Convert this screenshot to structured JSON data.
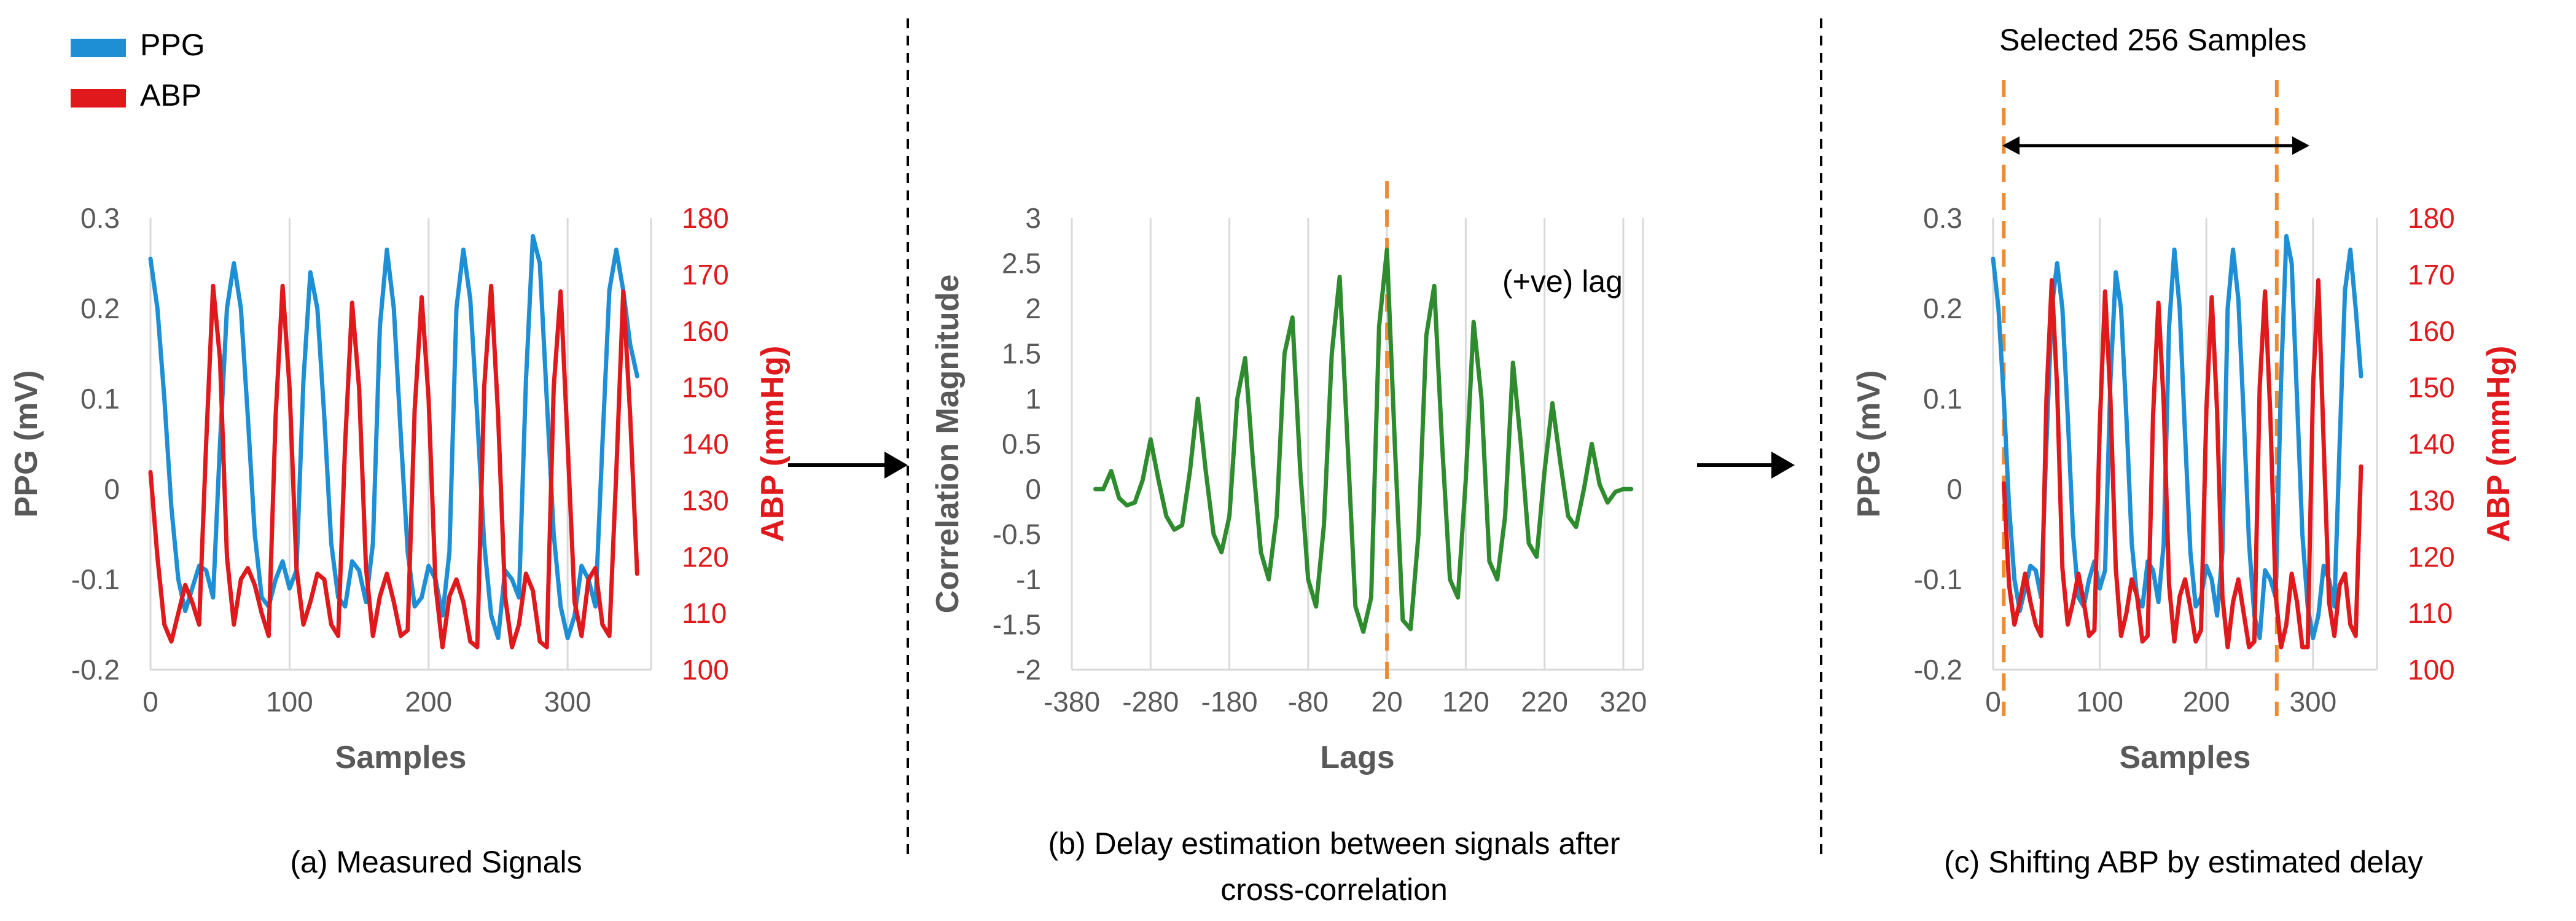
{
  "legend": {
    "items": [
      {
        "label": "PPG",
        "color": "#1E8FD5"
      },
      {
        "label": "ABP",
        "color": "#E0191C"
      }
    ]
  },
  "captions": {
    "a": "(a) Measured Signals",
    "b_line1": "(b) Delay estimation between signals after",
    "b_line2": "cross-correlation",
    "c": "(c) Shifting ABP by estimated delay"
  },
  "annotations": {
    "lag": "(+ve) lag",
    "selected": "Selected 256 Samples"
  },
  "colors": {
    "ppg": "#1E8FD5",
    "abp": "#E0191C",
    "corr": "#2E8B2E",
    "marker": "#F08A2E",
    "axis_text": "#595959",
    "grid": "#D9D9D9"
  },
  "chart_data": [
    {
      "id": "a",
      "type": "line",
      "xlabel": "Samples",
      "ylabel": "PPG (mV)",
      "y2label": "ABP (mmHg)",
      "xlim": [
        0,
        360
      ],
      "xticks": [
        0,
        100,
        200,
        300
      ],
      "ylim": [
        -0.2,
        0.3
      ],
      "yticks": [
        -0.2,
        -0.1,
        0,
        0.1,
        0.2,
        0.3
      ],
      "y2lim": [
        100,
        180
      ],
      "y2ticks": [
        100,
        110,
        120,
        130,
        140,
        150,
        160,
        170,
        180
      ],
      "grid": "vertical",
      "series": [
        {
          "name": "PPG",
          "axis": "left",
          "x": [
            0,
            5,
            10,
            15,
            20,
            25,
            30,
            35,
            40,
            45,
            50,
            55,
            60,
            65,
            70,
            75,
            80,
            85,
            90,
            95,
            100,
            105,
            110,
            115,
            120,
            125,
            130,
            135,
            140,
            145,
            150,
            155,
            160,
            165,
            170,
            175,
            180,
            185,
            190,
            195,
            200,
            205,
            210,
            215,
            220,
            225,
            230,
            235,
            240,
            245,
            250,
            255,
            260,
            265,
            270,
            275,
            280,
            285,
            290,
            295,
            300,
            305,
            310,
            315,
            320,
            325,
            330,
            335,
            340,
            345,
            350
          ],
          "values": [
            0.255,
            0.2,
            0.1,
            -0.02,
            -0.1,
            -0.135,
            -0.11,
            -0.085,
            -0.09,
            -0.12,
            0.05,
            0.2,
            0.25,
            0.2,
            0.08,
            -0.05,
            -0.12,
            -0.13,
            -0.1,
            -0.08,
            -0.11,
            -0.09,
            0.12,
            0.24,
            0.2,
            0.08,
            -0.06,
            -0.12,
            -0.13,
            -0.08,
            -0.09,
            -0.125,
            -0.06,
            0.18,
            0.265,
            0.2,
            0.06,
            -0.07,
            -0.13,
            -0.12,
            -0.085,
            -0.1,
            -0.14,
            -0.07,
            0.2,
            0.265,
            0.21,
            0.08,
            -0.06,
            -0.14,
            -0.165,
            -0.09,
            -0.1,
            -0.12,
            0.12,
            0.28,
            0.25,
            0.1,
            -0.05,
            -0.13,
            -0.165,
            -0.14,
            -0.085,
            -0.1,
            -0.13,
            0.05,
            0.22,
            0.265,
            0.22,
            0.16,
            0.125
          ]
        },
        {
          "name": "ABP",
          "axis": "right",
          "x": [
            0,
            5,
            10,
            15,
            20,
            25,
            30,
            35,
            40,
            45,
            50,
            55,
            60,
            65,
            70,
            75,
            80,
            85,
            90,
            95,
            100,
            105,
            110,
            115,
            120,
            125,
            130,
            135,
            140,
            145,
            150,
            155,
            160,
            165,
            170,
            175,
            180,
            185,
            190,
            195,
            200,
            205,
            210,
            215,
            220,
            225,
            230,
            235,
            240,
            245,
            250,
            255,
            260,
            265,
            270,
            275,
            280,
            285,
            290,
            295,
            300,
            305,
            310,
            315,
            320,
            325,
            330,
            335,
            340,
            345,
            350
          ],
          "values": [
            135,
            120,
            108,
            105,
            110,
            115,
            112,
            108,
            140,
            168,
            155,
            120,
            108,
            116,
            118,
            115,
            110,
            106,
            145,
            168,
            150,
            118,
            108,
            112,
            117,
            116,
            108,
            106,
            140,
            165,
            150,
            118,
            106,
            113,
            117,
            112,
            106,
            107,
            146,
            166,
            148,
            115,
            104,
            113,
            116,
            112,
            105,
            104,
            150,
            168,
            145,
            113,
            104,
            108,
            117,
            114,
            105,
            104,
            150,
            167,
            140,
            112,
            106,
            116,
            118,
            108,
            106,
            135,
            167,
            145,
            117
          ]
        }
      ]
    },
    {
      "id": "b",
      "type": "line",
      "xlabel": "Lags",
      "ylabel": "Correlation Magnitude",
      "xlim": [
        -380,
        345
      ],
      "xticks": [
        -380,
        -280,
        -180,
        -80,
        20,
        120,
        220,
        320
      ],
      "ylim": [
        -2,
        3
      ],
      "yticks": [
        -2,
        -1.5,
        -1,
        -0.5,
        0,
        0.5,
        1,
        1.5,
        2,
        2.5,
        3
      ],
      "grid": "vertical",
      "marker_x": 20,
      "series": [
        {
          "name": "",
          "x": [
            -350,
            -340,
            -330,
            -320,
            -310,
            -300,
            -290,
            -280,
            -270,
            -260,
            -250,
            -240,
            -230,
            -220,
            -210,
            -200,
            -190,
            -180,
            -170,
            -160,
            -150,
            -140,
            -130,
            -120,
            -110,
            -100,
            -90,
            -80,
            -70,
            -60,
            -50,
            -40,
            -30,
            -20,
            -10,
            0,
            10,
            20,
            30,
            40,
            50,
            60,
            70,
            80,
            90,
            100,
            110,
            120,
            130,
            140,
            150,
            160,
            170,
            180,
            190,
            200,
            210,
            220,
            230,
            240,
            250,
            260,
            270,
            280,
            290,
            300,
            310,
            320,
            330
          ],
          "values": [
            0,
            0.0,
            0.2,
            -0.1,
            -0.18,
            -0.15,
            0.1,
            0.55,
            0.1,
            -0.3,
            -0.45,
            -0.4,
            0.2,
            1.0,
            0.2,
            -0.5,
            -0.7,
            -0.3,
            1.0,
            1.45,
            0.3,
            -0.7,
            -1.0,
            -0.3,
            1.5,
            1.9,
            0.2,
            -1.0,
            -1.3,
            -0.4,
            1.5,
            2.35,
            0.5,
            -1.3,
            -1.58,
            -1.2,
            1.8,
            2.65,
            0.5,
            -1.45,
            -1.55,
            -0.5,
            1.7,
            2.25,
            0.5,
            -1.0,
            -1.2,
            0.1,
            1.85,
            1.0,
            -0.8,
            -1.0,
            -0.3,
            1.4,
            0.5,
            -0.6,
            -0.75,
            0.2,
            0.95,
            0.3,
            -0.3,
            -0.42,
            0.0,
            0.5,
            0.05,
            -0.15,
            -0.03,
            0.0,
            0.0
          ]
        }
      ]
    },
    {
      "id": "c",
      "type": "line",
      "xlabel": "Samples",
      "ylabel": "PPG (mV)",
      "y2label": "ABP (mmHg)",
      "xlim": [
        0,
        360
      ],
      "xticks": [
        0,
        100,
        200,
        300
      ],
      "ylim": [
        -0.2,
        0.3
      ],
      "yticks": [
        -0.2,
        -0.1,
        0,
        0.1,
        0.2,
        0.3
      ],
      "y2lim": [
        100,
        180
      ],
      "y2ticks": [
        100,
        110,
        120,
        130,
        140,
        150,
        160,
        170,
        180
      ],
      "grid": "vertical",
      "marker_x": [
        10,
        266
      ],
      "series": [
        {
          "name": "PPG",
          "axis": "left",
          "x": [
            0,
            5,
            10,
            15,
            20,
            25,
            30,
            35,
            40,
            45,
            50,
            55,
            60,
            65,
            70,
            75,
            80,
            85,
            90,
            95,
            100,
            105,
            110,
            115,
            120,
            125,
            130,
            135,
            140,
            145,
            150,
            155,
            160,
            165,
            170,
            175,
            180,
            185,
            190,
            195,
            200,
            205,
            210,
            215,
            220,
            225,
            230,
            235,
            240,
            245,
            250,
            255,
            260,
            265,
            270,
            275,
            280,
            285,
            290,
            295,
            300,
            305,
            310,
            315,
            320,
            325,
            330,
            335,
            340,
            345
          ],
          "values": [
            0.255,
            0.2,
            0.1,
            -0.02,
            -0.1,
            -0.135,
            -0.11,
            -0.085,
            -0.09,
            -0.12,
            0.05,
            0.2,
            0.25,
            0.2,
            0.08,
            -0.05,
            -0.12,
            -0.13,
            -0.1,
            -0.08,
            -0.11,
            -0.09,
            0.12,
            0.24,
            0.2,
            0.08,
            -0.06,
            -0.12,
            -0.13,
            -0.08,
            -0.09,
            -0.125,
            -0.06,
            0.18,
            0.265,
            0.2,
            0.06,
            -0.07,
            -0.13,
            -0.12,
            -0.085,
            -0.1,
            -0.14,
            -0.07,
            0.2,
            0.265,
            0.21,
            0.08,
            -0.06,
            -0.14,
            -0.165,
            -0.09,
            -0.1,
            -0.12,
            0.12,
            0.28,
            0.25,
            0.1,
            -0.05,
            -0.13,
            -0.165,
            -0.14,
            -0.085,
            -0.1,
            -0.13,
            0.05,
            0.22,
            0.265,
            0.2,
            0.125
          ]
        },
        {
          "name": "ABP",
          "axis": "right",
          "x": [
            10,
            15,
            20,
            25,
            30,
            35,
            40,
            45,
            50,
            55,
            60,
            65,
            70,
            75,
            80,
            85,
            90,
            95,
            100,
            105,
            110,
            115,
            120,
            125,
            130,
            135,
            140,
            145,
            150,
            155,
            160,
            165,
            170,
            175,
            180,
            185,
            190,
            195,
            200,
            205,
            210,
            215,
            220,
            225,
            230,
            235,
            240,
            245,
            250,
            255,
            260,
            265,
            270,
            275,
            280,
            285,
            290,
            295,
            300,
            305,
            310,
            315,
            320,
            325,
            330,
            335,
            340,
            345
          ],
          "values": [
            133,
            115,
            108,
            112,
            117,
            112,
            108,
            106,
            148,
            169,
            150,
            118,
            108,
            112,
            117,
            112,
            106,
            107,
            143,
            167,
            148,
            118,
            106,
            110,
            116,
            113,
            105,
            106,
            145,
            165,
            147,
            115,
            105,
            113,
            116,
            111,
            105,
            107,
            146,
            166,
            146,
            113,
            104,
            112,
            116,
            110,
            104,
            105,
            150,
            167,
            145,
            113,
            104,
            108,
            117,
            112,
            104,
            104,
            150,
            169,
            140,
            112,
            106,
            115,
            117,
            108,
            106,
            136
          ]
        }
      ]
    }
  ]
}
